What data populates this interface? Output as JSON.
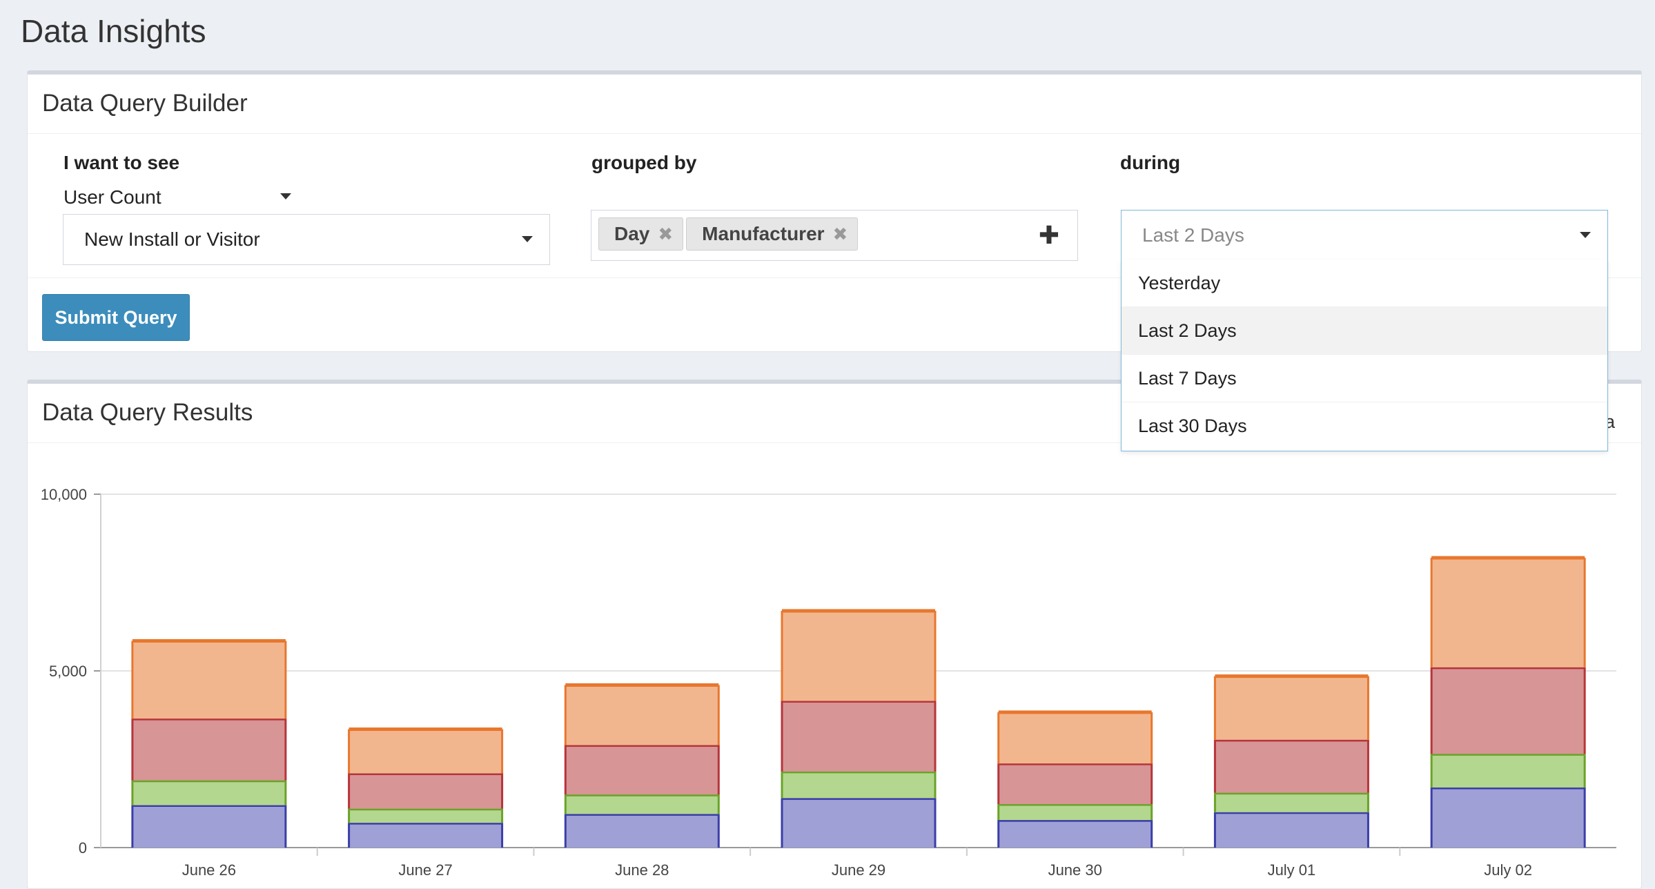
{
  "page": {
    "title": "Data Insights"
  },
  "builder": {
    "title": "Data Query Builder",
    "want_label": "I want to see",
    "metric": "User Count",
    "segment": "New Install or Visitor",
    "grouped_label": "grouped by",
    "group_tags": [
      {
        "label": "Day",
        "remove_glyph": "✖"
      },
      {
        "label": "Manufacturer",
        "remove_glyph": "✖"
      }
    ],
    "add_glyph": "✚",
    "during_label": "during",
    "during_value": "Last 2 Days",
    "during_options": [
      "Yesterday",
      "Last 2 Days",
      "Last 7 Days",
      "Last 30 Days"
    ],
    "during_selected_index": 1,
    "submit_label": "Submit Query"
  },
  "results": {
    "title": "Data Query Results",
    "partial_action": "a"
  },
  "icons": {
    "caret": "caret-down-icon",
    "tag_remove": "close-icon",
    "add": "plus-icon"
  },
  "colors": {
    "accent": "#3c8dbc",
    "series_fill": [
      "#9fa0d6",
      "#b3d78e",
      "#d79596",
      "#f2b68f"
    ],
    "series_stroke": [
      "#3b3ea8",
      "#6aa329",
      "#b6353a",
      "#e8772e"
    ]
  },
  "chart_data": {
    "type": "bar",
    "stacked": true,
    "categories": [
      "June 26",
      "June 27",
      "June 28",
      "June 29",
      "June 30",
      "July 01",
      "July 02"
    ],
    "series": [
      {
        "values": [
          1200,
          700,
          950,
          1400,
          780,
          1000,
          1700
        ]
      },
      {
        "values": [
          700,
          400,
          550,
          750,
          450,
          550,
          950
        ]
      },
      {
        "values": [
          1750,
          1000,
          1400,
          2000,
          1150,
          1500,
          2450
        ]
      },
      {
        "values": [
          2200,
          1250,
          1700,
          2550,
          1450,
          1800,
          3100
        ]
      }
    ],
    "yticks": [
      "0",
      "5,000",
      "10,000"
    ],
    "ylim": [
      0,
      10000
    ],
    "grid": true,
    "legend": "none"
  }
}
